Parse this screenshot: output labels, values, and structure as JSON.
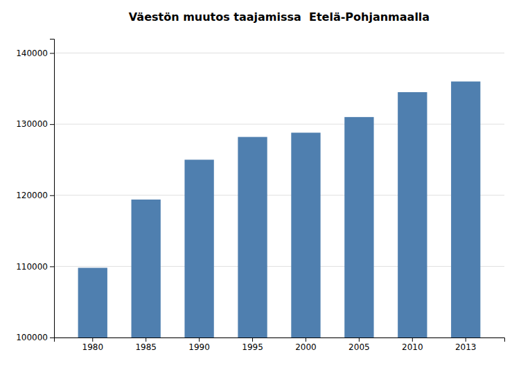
{
  "chart_data": {
    "type": "bar",
    "title": "Väestön muutos taajamissa  Etelä-Pohjanmaalla",
    "categories": [
      "1980",
      "1985",
      "1990",
      "1995",
      "2000",
      "2005",
      "2010",
      "2013"
    ],
    "values": [
      109800,
      119400,
      125000,
      128200,
      128800,
      131000,
      134500,
      136000
    ],
    "color": "#4f7faf",
    "ylim": [
      100000,
      142000
    ],
    "yticks": [
      100000,
      110000,
      120000,
      130000,
      140000
    ],
    "grid": true
  }
}
